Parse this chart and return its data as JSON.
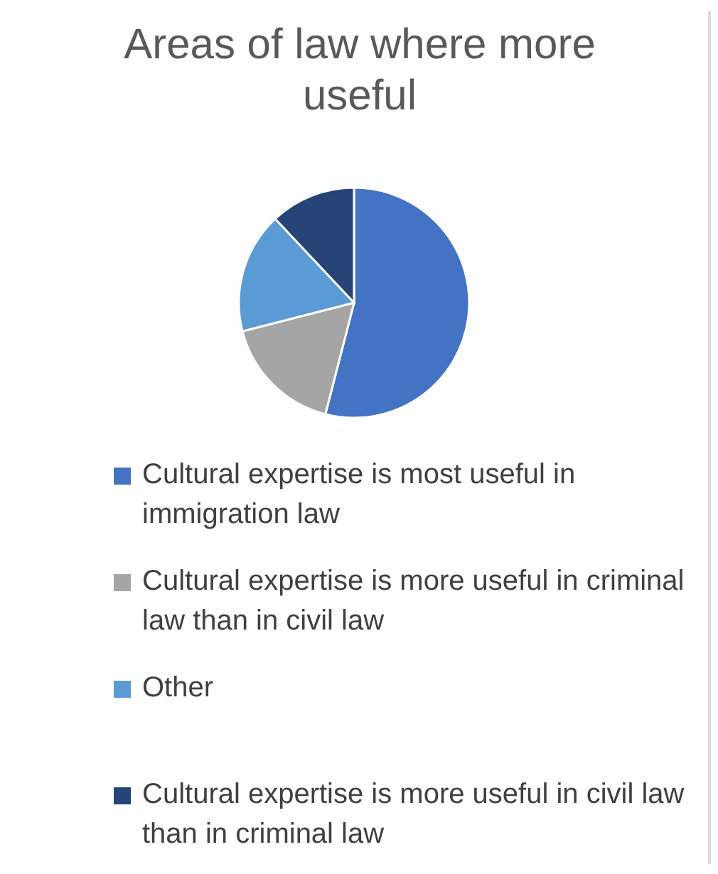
{
  "chart_data": {
    "type": "pie",
    "title": "Areas of law where more useful",
    "categories": [
      "Cultural expertise is most useful in immigration law",
      "Cultural expertise is more useful in criminal law than in civil law",
      "Other",
      "Cultural expertise is more useful in civil law than in criminal law"
    ],
    "values": [
      54,
      17,
      17,
      12
    ],
    "colors": [
      "#4472c4",
      "#a5a5a5",
      "#5b9bd5",
      "#264478"
    ],
    "legend": "bottom"
  }
}
